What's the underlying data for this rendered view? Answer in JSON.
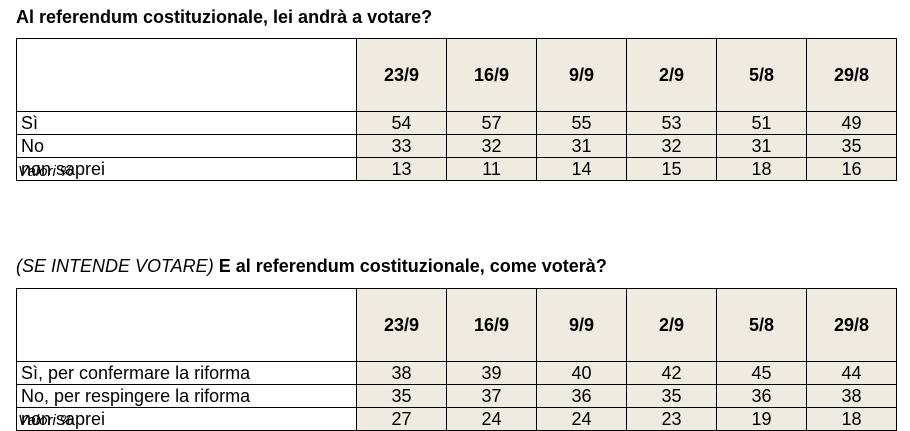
{
  "section1": {
    "title": "Al referendum costituzionale, lei andrà a votare?",
    "columns": [
      "23/9",
      "16/9",
      "9/9",
      "2/9",
      "5/8",
      "29/8"
    ],
    "rows": [
      {
        "label": "Sì",
        "values": [
          "54",
          "57",
          "55",
          "53",
          "51",
          "49"
        ]
      },
      {
        "label": "No",
        "values": [
          "33",
          "32",
          "31",
          "32",
          "31",
          "35"
        ]
      },
      {
        "label": "non saprei",
        "values": [
          "13",
          "11",
          "14",
          "15",
          "18",
          "16"
        ]
      }
    ],
    "note": "Valori %"
  },
  "section2": {
    "title_prefix": "(SE INTENDE VOTARE)",
    "title": "E al referendum costituzionale, come voterà?",
    "columns": [
      "23/9",
      "16/9",
      "9/9",
      "2/9",
      "5/8",
      "29/8"
    ],
    "rows": [
      {
        "label": "Sì, per confermare la riforma",
        "values": [
          "38",
          "39",
          "40",
          "42",
          "45",
          "44"
        ]
      },
      {
        "label": "No, per respingere la riforma",
        "values": [
          "35",
          "37",
          "36",
          "35",
          "36",
          "38"
        ]
      },
      {
        "label": "non saprei",
        "values": [
          "27",
          "24",
          "24",
          "23",
          "19",
          "18"
        ]
      }
    ],
    "note": "Valori %"
  },
  "colors": {
    "value_cell_background": "#efebe1",
    "border": "#000000"
  }
}
